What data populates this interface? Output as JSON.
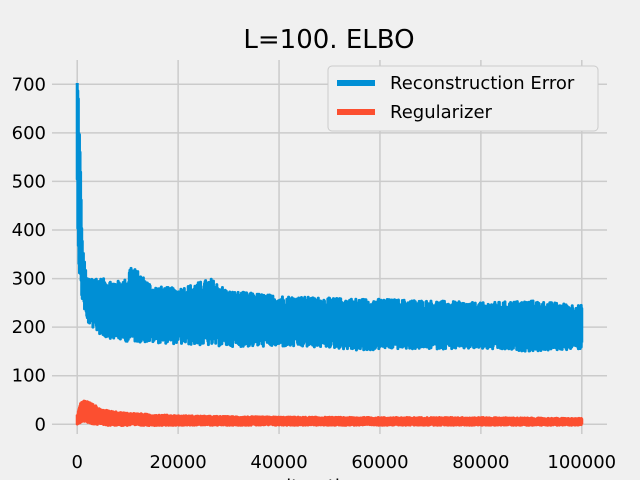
{
  "chart_data": {
    "type": "line",
    "title": "L=100. ELBO",
    "xlabel": "iterations",
    "ylabel": "",
    "xlim": [
      -5000,
      105000
    ],
    "ylim": [
      -20,
      750
    ],
    "xticks": [
      0,
      20000,
      40000,
      60000,
      80000,
      100000
    ],
    "xtick_labels": [
      "0",
      "20000",
      "40000",
      "60000",
      "80000",
      "100000"
    ],
    "yticks": [
      0,
      100,
      200,
      300,
      400,
      500,
      600,
      700
    ],
    "ytick_labels": [
      "0",
      "100",
      "200",
      "300",
      "400",
      "500",
      "600",
      "700"
    ],
    "grid": true,
    "legend_position": "top-right",
    "series": [
      {
        "name": "Reconstruction Error",
        "color": "#008fd5",
        "band": true,
        "upper": [
          [
            0,
            720
          ],
          [
            200,
            700
          ],
          [
            600,
            560
          ],
          [
            1000,
            380
          ],
          [
            1500,
            330
          ],
          [
            2000,
            300
          ],
          [
            3000,
            305
          ],
          [
            5000,
            300
          ],
          [
            8000,
            295
          ],
          [
            10000,
            300
          ],
          [
            10500,
            330
          ],
          [
            15000,
            285
          ],
          [
            20000,
            280
          ],
          [
            26500,
            300
          ],
          [
            30000,
            275
          ],
          [
            40000,
            265
          ],
          [
            50000,
            260
          ],
          [
            60000,
            258
          ],
          [
            70000,
            255
          ],
          [
            80000,
            250
          ],
          [
            90000,
            255
          ],
          [
            100000,
            245
          ]
        ],
        "lower": [
          [
            0,
            470
          ],
          [
            200,
            350
          ],
          [
            600,
            270
          ],
          [
            1000,
            255
          ],
          [
            2000,
            210
          ],
          [
            5000,
            180
          ],
          [
            10000,
            170
          ],
          [
            15000,
            168
          ],
          [
            20000,
            165
          ],
          [
            30000,
            160
          ],
          [
            40000,
            160
          ],
          [
            50000,
            158
          ],
          [
            57000,
            150
          ],
          [
            60000,
            155
          ],
          [
            70000,
            155
          ],
          [
            80000,
            155
          ],
          [
            90000,
            150
          ],
          [
            100000,
            155
          ]
        ]
      },
      {
        "name": "Regularizer",
        "color": "#fc4f30",
        "band": true,
        "upper": [
          [
            0,
            20
          ],
          [
            500,
            40
          ],
          [
            1000,
            50
          ],
          [
            2000,
            48
          ],
          [
            3000,
            42
          ],
          [
            5000,
            30
          ],
          [
            8000,
            25
          ],
          [
            15000,
            20
          ],
          [
            20000,
            18
          ],
          [
            30000,
            16
          ],
          [
            40000,
            15
          ],
          [
            60000,
            14
          ],
          [
            80000,
            14
          ],
          [
            100000,
            12
          ]
        ],
        "lower": [
          [
            0,
            0
          ],
          [
            1000,
            5
          ],
          [
            3000,
            0
          ],
          [
            5000,
            -2
          ],
          [
            10000,
            -3
          ],
          [
            20000,
            -2
          ],
          [
            40000,
            -2
          ],
          [
            60000,
            -2
          ],
          [
            80000,
            -2
          ],
          [
            100000,
            -2
          ]
        ]
      }
    ]
  }
}
